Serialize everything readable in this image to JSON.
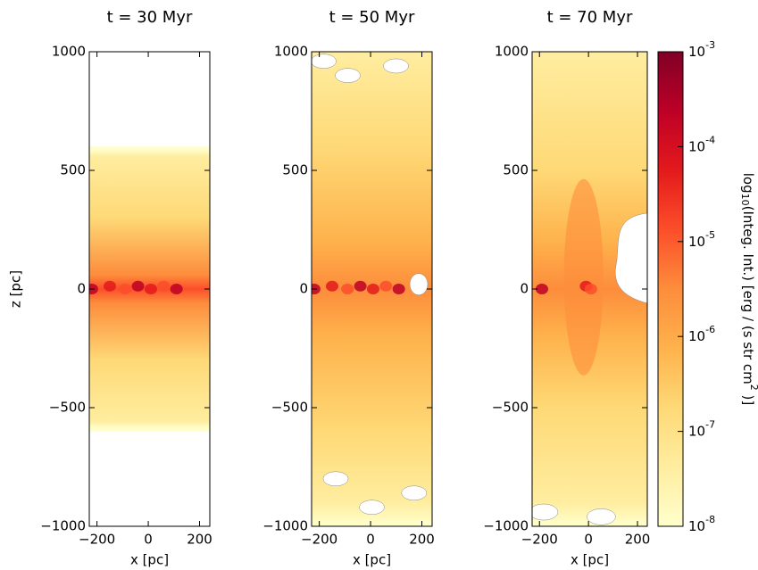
{
  "chart_data": [
    {
      "type": "image",
      "title": "t = 30 Myr",
      "xlabel": "x [pc]",
      "ylabel": "z [pc]",
      "xlim": [
        -230,
        240
      ],
      "ylim": [
        -1000,
        1000
      ],
      "xticks": [
        {
          "value": -200,
          "label": "−200"
        },
        0,
        200
      ],
      "yticks": [
        {
          "value": -1000,
          "label": "−1000"
        },
        {
          "value": -500,
          "label": "−500"
        },
        0,
        500,
        1000
      ]
    },
    {
      "type": "image",
      "title": "t = 50 Myr",
      "xlabel": "x [pc]",
      "xlim": [
        -230,
        240
      ],
      "ylim": [
        -1000,
        1000
      ],
      "xticks": [
        {
          "value": -200,
          "label": "−200"
        },
        0,
        200
      ],
      "yticks": [
        {
          "value": -1000,
          "label": "−1000"
        },
        {
          "value": -500,
          "label": "−500"
        },
        0,
        500,
        1000
      ]
    },
    {
      "type": "image",
      "title": "t = 70 Myr",
      "xlabel": "x [pc]",
      "xlim": [
        -230,
        240
      ],
      "ylim": [
        -1000,
        1000
      ],
      "xticks": [
        {
          "value": -200,
          "label": "−200"
        },
        0,
        200
      ],
      "yticks": [
        {
          "value": -1000,
          "label": "−1000"
        },
        {
          "value": -500,
          "label": "−500"
        },
        0,
        500,
        1000
      ],
      "colorbar": {
        "scale": "log",
        "lim": [
          1e-08,
          0.001
        ],
        "ticks": [
          {
            "value": 1e-08,
            "label": "10",
            "exponent": "-8"
          },
          {
            "value": 1e-07,
            "label": "10",
            "exponent": "-7"
          },
          {
            "value": 1e-06,
            "label": "10",
            "exponent": "-6"
          },
          {
            "value": 1e-05,
            "label": "10",
            "exponent": "-5"
          },
          {
            "value": 0.0001,
            "label": "10",
            "exponent": "-4"
          },
          {
            "value": 0.001,
            "label": "10",
            "exponent": "-3"
          }
        ],
        "label_parts": [
          "log",
          "10",
          "(Integ. Int.) [erg / (s str cm",
          "2",
          " )]"
        ],
        "colors": [
          "#ffffcc",
          "#ffeda0",
          "#fed976",
          "#feb24c",
          "#fd8d3c",
          "#fc4e2a",
          "#e31a1c",
          "#bd0026",
          "#800026"
        ]
      }
    }
  ]
}
